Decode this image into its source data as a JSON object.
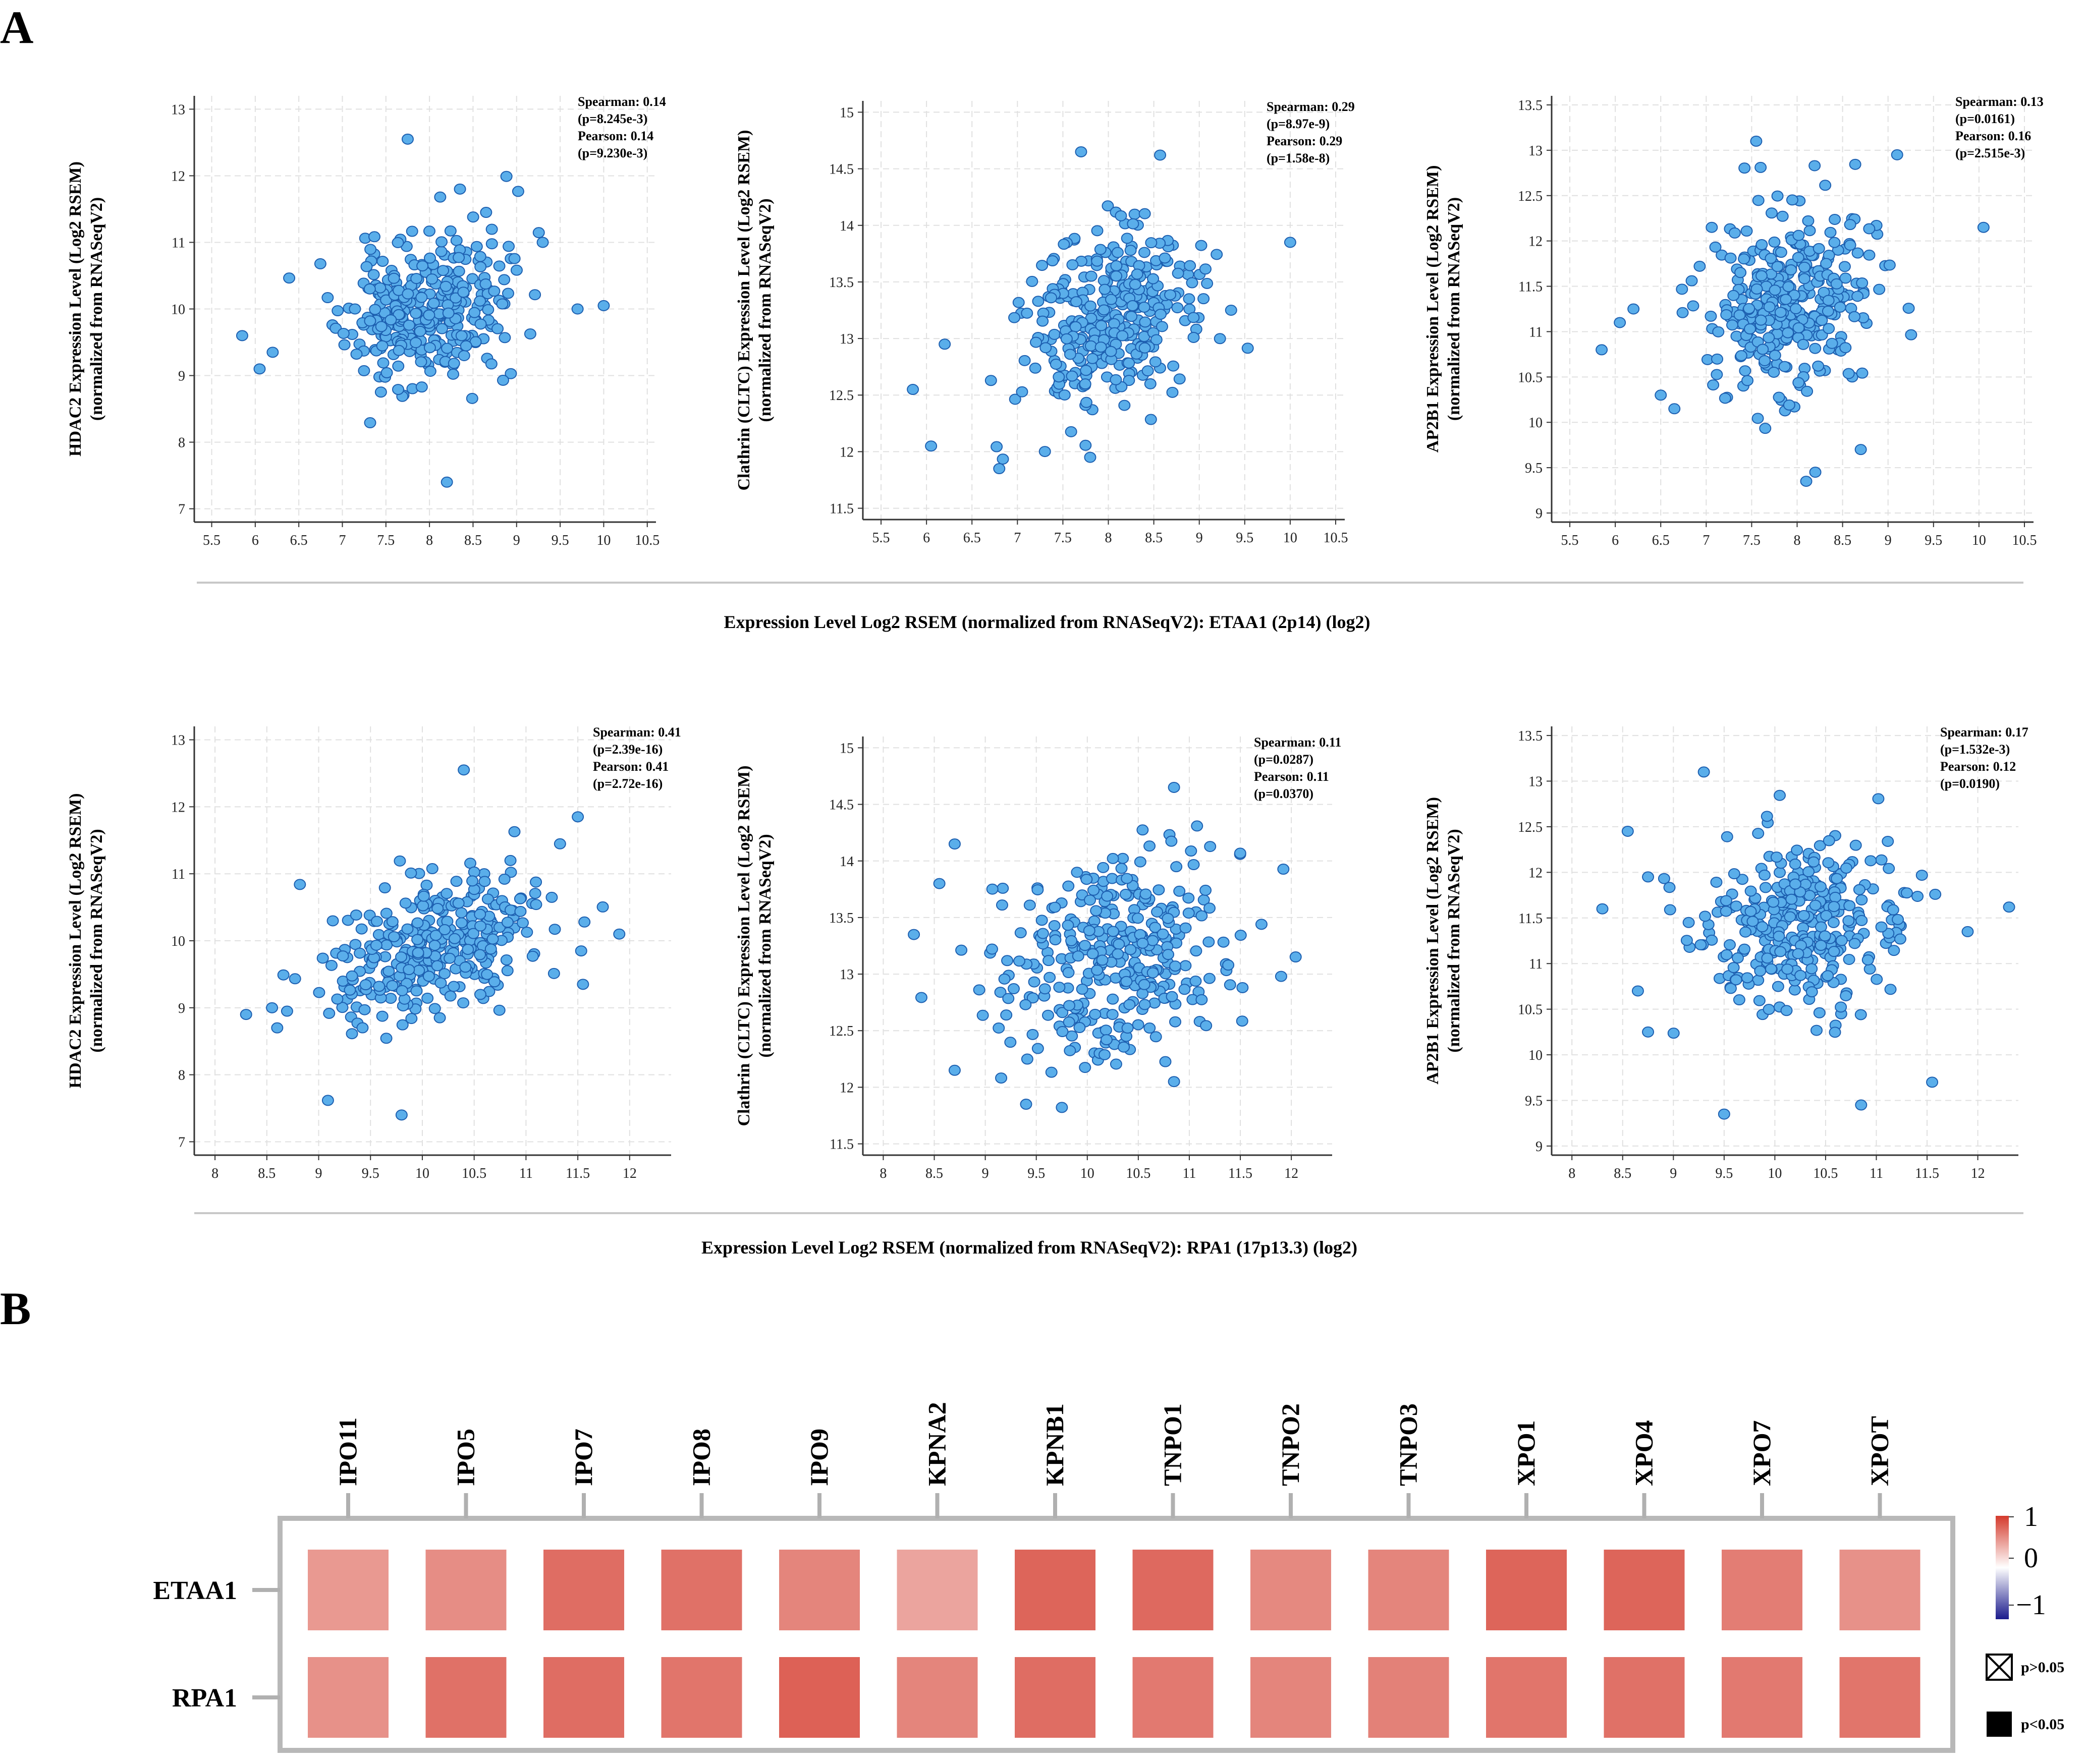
{
  "panel_labels": [
    "A",
    "B"
  ],
  "chart_data": [
    {
      "type": "scatter",
      "panel": "A",
      "ylabel": [
        "HDAC2 Expression Level (Log2 RSEM)",
        "(normalized from RNASeqV2)"
      ],
      "xlabel": "Expression Level Log2 RSEM (normalized from RNASeqV2): ETAA1 (2p14) (log2)",
      "xlim": [
        5.3,
        10.6
      ],
      "ylim": [
        6.8,
        13.2
      ],
      "xticks": [
        "5.5",
        "6",
        "6.5",
        "7",
        "7.5",
        "8",
        "8.5",
        "9",
        "9.5",
        "10",
        "10.5"
      ],
      "yticks": [
        "7",
        "8",
        "9",
        "10",
        "11",
        "12",
        "13"
      ],
      "stats": [
        "Spearman: 0.14",
        "(p=8.245e-3)",
        "Pearson: 0.14",
        "(p=9.230e-3)"
      ],
      "cloud": {
        "cx": 7.95,
        "cy": 9.95,
        "sx": 0.45,
        "sy": 0.55,
        "rho": 0.14,
        "n": 330,
        "seed": 11
      },
      "outliers": [
        [
          7.75,
          12.55
        ],
        [
          8.2,
          7.4
        ],
        [
          5.85,
          9.6
        ],
        [
          6.05,
          9.1
        ],
        [
          6.2,
          9.35
        ],
        [
          10.0,
          10.05
        ],
        [
          9.7,
          10.0
        ],
        [
          9.3,
          11.0
        ],
        [
          8.65,
          11.45
        ],
        [
          8.35,
          11.8
        ]
      ]
    },
    {
      "type": "scatter",
      "panel": "A",
      "ylabel": [
        "Clathrin (CLTC) Expression Level (Log2 RSEM)",
        "(normalized from RNASeqV2)"
      ],
      "xlabel": "Expression Level Log2 RSEM (normalized from RNASeqV2): ETAA1 (2p14) (log2)",
      "xlim": [
        5.3,
        10.6
      ],
      "ylim": [
        11.4,
        15.1
      ],
      "xticks": [
        "5.5",
        "6",
        "6.5",
        "7",
        "7.5",
        "8",
        "8.5",
        "9",
        "9.5",
        "10",
        "10.5"
      ],
      "yticks": [
        "11.5",
        "12",
        "12.5",
        "13",
        "13.5",
        "14",
        "14.5",
        "15"
      ],
      "stats": [
        "Spearman: 0.29",
        "(p=8.97e-9)",
        "Pearson: 0.29",
        "(p=1.58e-8)"
      ],
      "cloud": {
        "cx": 8.0,
        "cy": 13.15,
        "sx": 0.45,
        "sy": 0.42,
        "rho": 0.29,
        "n": 330,
        "seed": 23
      },
      "outliers": [
        [
          7.7,
          14.65
        ],
        [
          10.0,
          13.85
        ],
        [
          5.85,
          12.55
        ],
        [
          6.05,
          12.05
        ],
        [
          6.2,
          12.95
        ],
        [
          6.8,
          11.85
        ],
        [
          7.8,
          11.95
        ],
        [
          9.35,
          13.25
        ]
      ]
    },
    {
      "type": "scatter",
      "panel": "A",
      "ylabel": [
        "AP2B1 Expression Level (Log2 RSEM)",
        "(normalized from RNASeqV2)"
      ],
      "xlabel": "Expression Level Log2 RSEM (normalized from RNASeqV2): ETAA1 (2p14) (log2)",
      "xlim": [
        5.3,
        10.6
      ],
      "ylim": [
        8.9,
        13.6
      ],
      "xticks": [
        "5.5",
        "6",
        "6.5",
        "7",
        "7.5",
        "8",
        "8.5",
        "9",
        "9.5",
        "10",
        "10.5"
      ],
      "yticks": [
        "9",
        "9.5",
        "10",
        "10.5",
        "11",
        "11.5",
        "12",
        "12.5",
        "13",
        "13.5"
      ],
      "stats": [
        "Spearman: 0.13",
        "(p=0.0161)",
        "Pearson: 0.16",
        "(p=2.515e-3)"
      ],
      "cloud": {
        "cx": 7.95,
        "cy": 11.35,
        "sx": 0.45,
        "sy": 0.5,
        "rho": 0.14,
        "n": 330,
        "seed": 37
      },
      "outliers": [
        [
          7.55,
          13.1
        ],
        [
          10.05,
          12.15
        ],
        [
          5.85,
          10.8
        ],
        [
          6.05,
          11.1
        ],
        [
          6.2,
          11.25
        ],
        [
          6.5,
          10.3
        ],
        [
          6.65,
          10.15
        ],
        [
          8.1,
          9.35
        ],
        [
          8.2,
          9.45
        ],
        [
          8.7,
          9.7
        ],
        [
          9.1,
          12.95
        ]
      ]
    },
    {
      "type": "scatter",
      "panel": "A",
      "ylabel": [
        "HDAC2 Expression Level (Log2 RSEM)",
        "(normalized from RNASeqV2)"
      ],
      "xlabel": "Expression Level Log2 RSEM (normalized from RNASeqV2): RPA1 (17p13.3) (log2)",
      "xlim": [
        7.8,
        12.4
      ],
      "ylim": [
        6.8,
        13.2
      ],
      "xticks": [
        "8",
        "8.5",
        "9",
        "9.5",
        "10",
        "10.5",
        "11",
        "11.5",
        "12"
      ],
      "yticks": [
        "7",
        "8",
        "9",
        "10",
        "11",
        "12",
        "13"
      ],
      "stats": [
        "Spearman: 0.41",
        "(p=2.39e-16)",
        "Pearson: 0.41",
        "(p=2.72e-16)"
      ],
      "cloud": {
        "cx": 10.1,
        "cy": 9.95,
        "sx": 0.5,
        "sy": 0.6,
        "rho": 0.41,
        "n": 330,
        "seed": 41
      },
      "outliers": [
        [
          10.4,
          12.55
        ],
        [
          9.8,
          7.4
        ],
        [
          8.3,
          8.9
        ],
        [
          8.55,
          9.0
        ],
        [
          8.6,
          8.7
        ],
        [
          11.9,
          10.1
        ],
        [
          11.55,
          9.35
        ],
        [
          11.5,
          11.85
        ]
      ]
    },
    {
      "type": "scatter",
      "panel": "A",
      "ylabel": [
        "Clathrin (CLTC) Expression Level (Log2 RSEM)",
        "(normalized from RNASeqV2)"
      ],
      "xlabel": "Expression Level Log2 RSEM (normalized from RNASeqV2): RPA1 (17p13.3) (log2)",
      "xlim": [
        7.8,
        12.4
      ],
      "ylim": [
        11.4,
        15.1
      ],
      "xticks": [
        "8",
        "8.5",
        "9",
        "9.5",
        "10",
        "10.5",
        "11",
        "11.5",
        "12"
      ],
      "yticks": [
        "11.5",
        "12",
        "12.5",
        "13",
        "13.5",
        "14",
        "14.5",
        "15"
      ],
      "stats": [
        "Spearman: 0.11",
        "(p=0.0287)",
        "Pearson: 0.11",
        "(p=0.0370)"
      ],
      "cloud": {
        "cx": 10.25,
        "cy": 13.15,
        "sx": 0.55,
        "sy": 0.45,
        "rho": 0.11,
        "n": 330,
        "seed": 53
      },
      "outliers": [
        [
          8.3,
          13.35
        ],
        [
          8.55,
          13.8
        ],
        [
          8.7,
          14.15
        ],
        [
          10.85,
          14.65
        ],
        [
          11.9,
          12.98
        ],
        [
          9.4,
          11.85
        ],
        [
          8.7,
          12.15
        ],
        [
          10.85,
          12.05
        ]
      ]
    },
    {
      "type": "scatter",
      "panel": "A",
      "ylabel": [
        "AP2B1 Expression Level (Log2 RSEM)",
        "(normalized from RNASeqV2)"
      ],
      "xlabel": "Expression Level Log2 RSEM (normalized from RNASeqV2): RPA1 (17p13.3) (log2)",
      "xlim": [
        7.8,
        12.4
      ],
      "ylim": [
        8.9,
        13.6
      ],
      "xticks": [
        "8",
        "8.5",
        "9",
        "9.5",
        "10",
        "10.5",
        "11",
        "11.5",
        "12"
      ],
      "yticks": [
        "9",
        "9.5",
        "10",
        "10.5",
        "11",
        "11.5",
        "12",
        "12.5",
        "13",
        "13.5"
      ],
      "stats": [
        "Spearman: 0.17",
        "(p=1.532e-3)",
        "Pearson: 0.12",
        "(p=0.0190)"
      ],
      "cloud": {
        "cx": 10.25,
        "cy": 11.45,
        "sx": 0.5,
        "sy": 0.45,
        "rho": 0.14,
        "n": 330,
        "seed": 67
      },
      "outliers": [
        [
          8.3,
          11.6
        ],
        [
          8.55,
          12.45
        ],
        [
          8.65,
          10.7
        ],
        [
          8.75,
          11.95
        ],
        [
          8.75,
          10.25
        ],
        [
          9.3,
          13.1
        ],
        [
          9.5,
          9.35
        ],
        [
          11.55,
          9.7
        ],
        [
          11.9,
          11.35
        ],
        [
          10.85,
          9.45
        ]
      ]
    },
    {
      "type": "heatmap",
      "panel": "B",
      "columns": [
        "IPO11",
        "IPO5",
        "IPO7",
        "IPO8",
        "IPO9",
        "KPNA2",
        "KPNB1",
        "TNPO1",
        "TNPO2",
        "TNPO3",
        "XPO1",
        "XPO4",
        "XPO7",
        "XPOT"
      ],
      "rows": [
        "ETAA1",
        "RPA1"
      ],
      "values": [
        [
          0.52,
          0.58,
          0.74,
          0.72,
          0.62,
          0.46,
          0.78,
          0.76,
          0.6,
          0.62,
          0.78,
          0.78,
          0.66,
          0.56
        ],
        [
          0.56,
          0.72,
          0.74,
          0.7,
          0.8,
          0.62,
          0.74,
          0.68,
          0.62,
          0.64,
          0.7,
          0.72,
          0.68,
          0.7
        ]
      ],
      "colorbar": {
        "min": -1,
        "max": 1,
        "tick_labels": [
          "1",
          "0",
          "−1"
        ],
        "low_color": "#1a1a8c",
        "mid_color": "#ffffff",
        "high_color": "#d43a2c"
      },
      "legend": [
        {
          "symbol": "crossed-square-icon",
          "label": "p>0.05"
        },
        {
          "symbol": "filled-square-icon",
          "label": "p<0.05"
        }
      ]
    }
  ],
  "colors": {
    "point_fill": "#5aaeea",
    "point_stroke": "#1d5fb0",
    "grid": "#e0e0e0",
    "axis": "#333333",
    "heatmap_frame": "#b8b8b8"
  }
}
